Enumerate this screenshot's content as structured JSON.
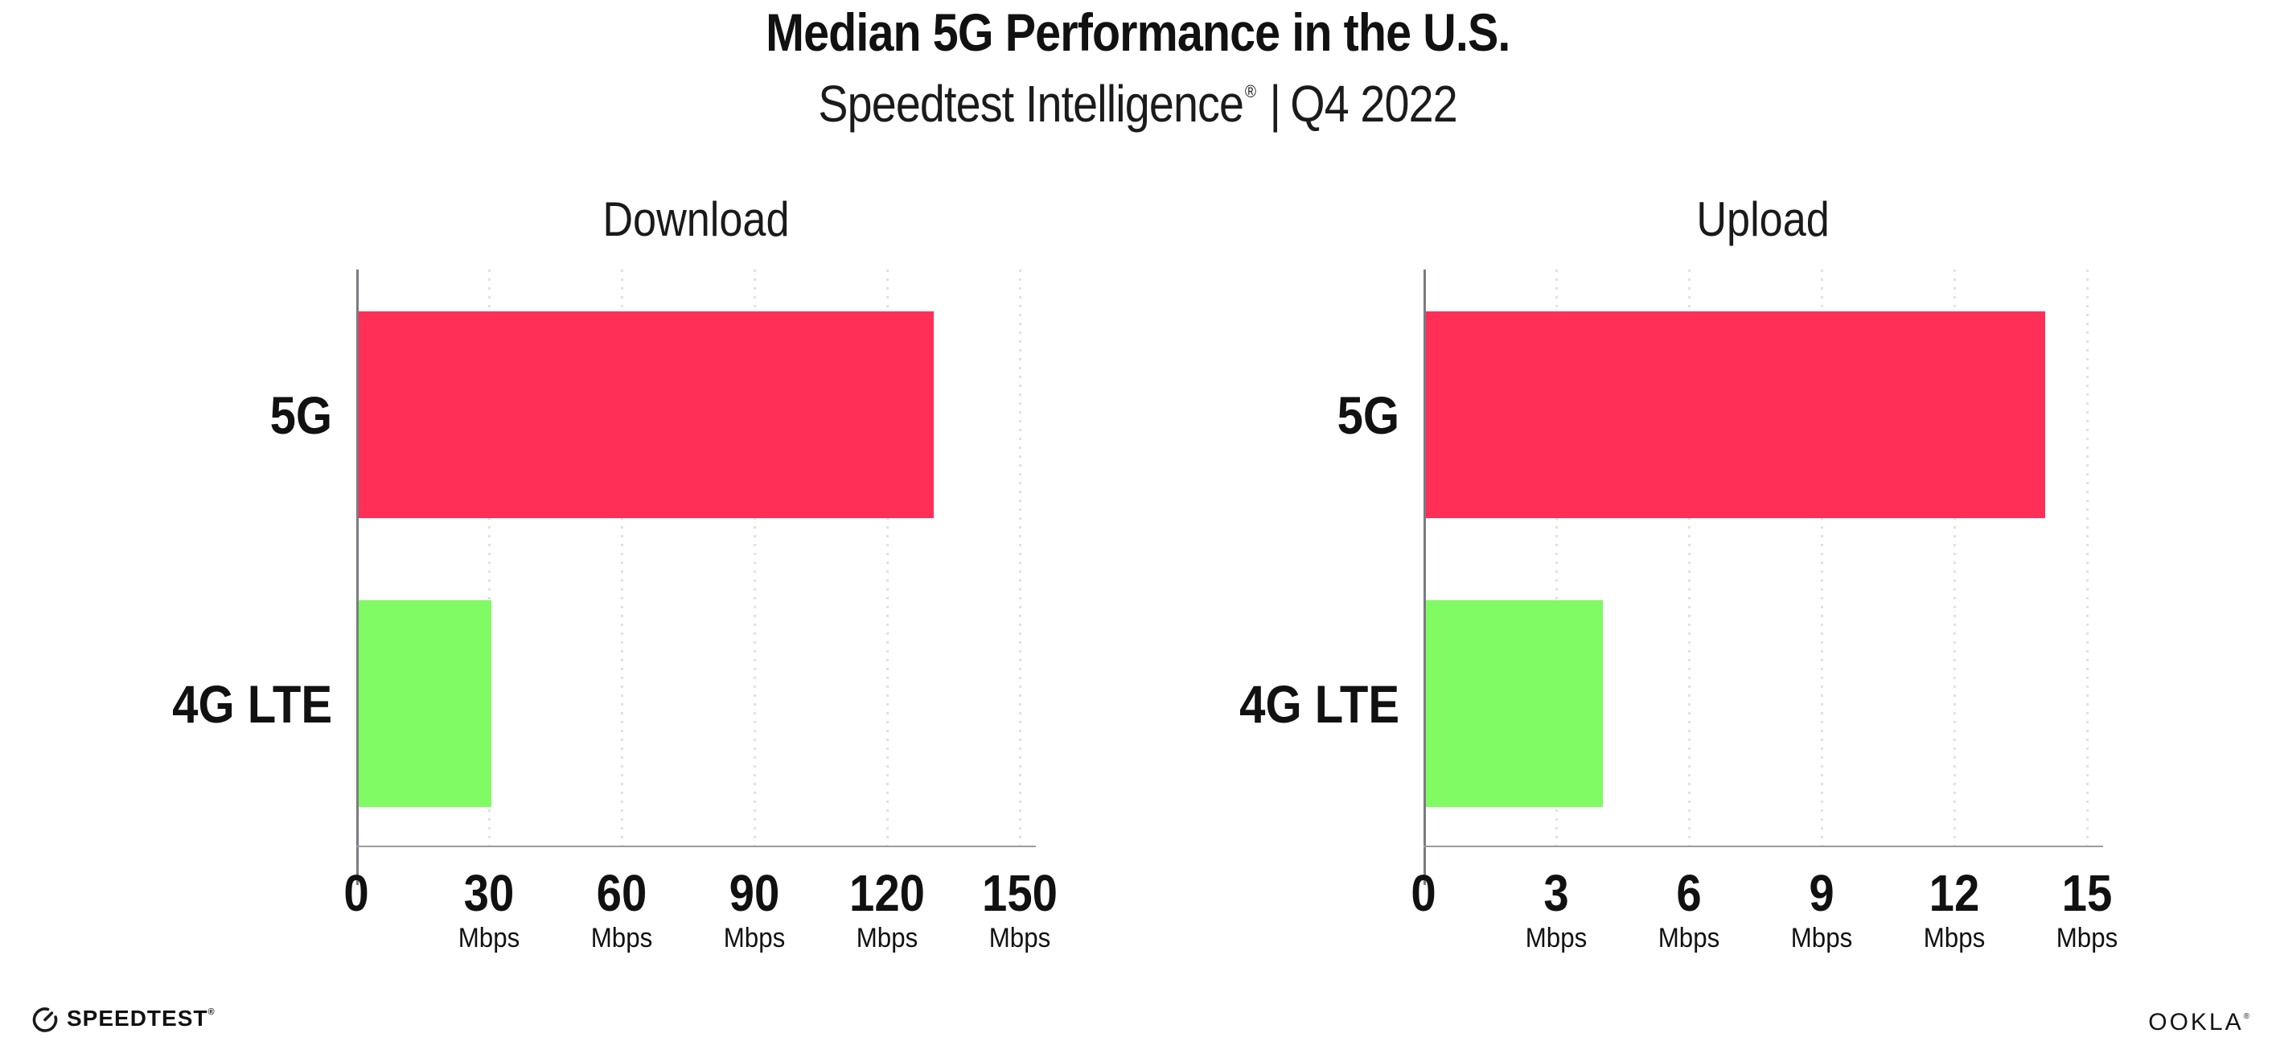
{
  "page": {
    "title": "Median 5G Performance in the U.S.",
    "subtitle": {
      "brand": "Speedtest Intelligence",
      "mark": "®",
      "separator": "|",
      "period": "Q4 2022"
    }
  },
  "chart_data": [
    {
      "type": "bar",
      "orientation": "horizontal",
      "title": "Download",
      "categories": [
        "5G",
        "4G LTE"
      ],
      "values": [
        130,
        30
      ],
      "unit": "Mbps",
      "xticks": [
        0,
        30,
        60,
        90,
        120,
        150
      ],
      "xlim": [
        0,
        150
      ],
      "grid": "vertical-dotted",
      "legend": "none",
      "bar_colors": [
        "#FF2F58",
        "#80FB64"
      ]
    },
    {
      "type": "bar",
      "orientation": "horizontal",
      "title": "Upload",
      "categories": [
        "5G",
        "4G LTE"
      ],
      "values": [
        14,
        4
      ],
      "unit": "Mbps",
      "xticks": [
        0,
        3,
        6,
        9,
        12,
        15
      ],
      "xlim": [
        0,
        15
      ],
      "grid": "vertical-dotted",
      "legend": "none",
      "bar_colors": [
        "#FF2F58",
        "#80FB64"
      ]
    }
  ],
  "footer": {
    "speedtest_logo": "SPEEDTEST",
    "speedtest_mark": "®",
    "ookla_logo": "OOKLA",
    "ookla_mark": "®"
  },
  "colors": {
    "bar_5g": "#FF2F58",
    "bar_4g_lte": "#80FB64",
    "grid_dots": "#DFE0EA",
    "y_axis": "#7B7B82",
    "x_axis": "#9B9BA1",
    "text": "#111111"
  }
}
